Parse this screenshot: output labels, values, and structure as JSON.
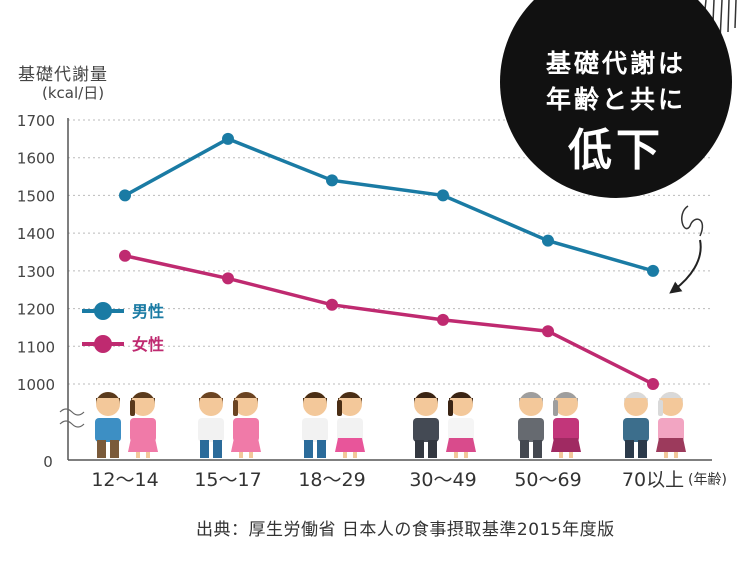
{
  "chart_data": {
    "type": "line",
    "ylabel": "基礎代謝量",
    "yunit": "(kcal/日)",
    "categories": [
      "12〜14",
      "15〜17",
      "18〜29",
      "30〜49",
      "50〜69",
      "70以上"
    ],
    "xunit": "(年齢)",
    "yticks": [
      1700,
      1600,
      1500,
      1400,
      1300,
      1200,
      1100,
      1000
    ],
    "ybase": "0",
    "ylim": [
      1000,
      1700
    ],
    "grid": "dotted horizontal",
    "series": [
      {
        "name": "男性",
        "color": "#1a7ba4",
        "values": [
          1500,
          1650,
          1540,
          1500,
          1380,
          1300
        ]
      },
      {
        "name": "女性",
        "color": "#bf2a70",
        "values": [
          1340,
          1280,
          1210,
          1170,
          1140,
          1000
        ]
      }
    ],
    "legend": "left-middle"
  },
  "badge": {
    "line1": "基礎代謝は",
    "line2": "年齢と共に",
    "line3": "低下"
  },
  "source": "出典：厚生労働省 日本人の食事摂取基準2015年度版"
}
